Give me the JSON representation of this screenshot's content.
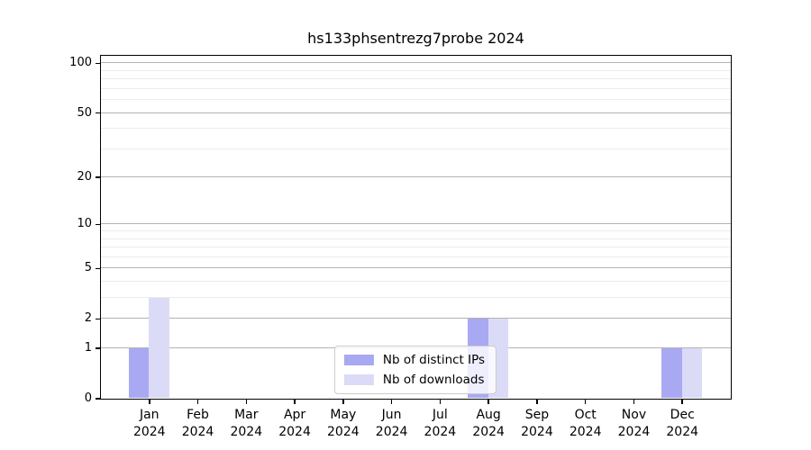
{
  "chart_data": {
    "type": "bar",
    "title": "hs133phsentrezg7probe 2024",
    "categories": [
      "Jan",
      "Feb",
      "Mar",
      "Apr",
      "May",
      "Jun",
      "Jul",
      "Aug",
      "Sep",
      "Oct",
      "Nov",
      "Dec"
    ],
    "category_year": "2024",
    "series": [
      {
        "name": "Nb of distinct IPs",
        "color": "#a9a9f3",
        "values": [
          1,
          0,
          0,
          0,
          0,
          0,
          0,
          2,
          0,
          0,
          0,
          1
        ]
      },
      {
        "name": "Nb of downloads",
        "color": "#dbdbf8",
        "values": [
          3,
          0,
          0,
          0,
          0,
          0,
          0,
          2,
          0,
          0,
          0,
          1
        ]
      }
    ],
    "yaxis": {
      "scale": "log1p",
      "min": 0,
      "max": 111,
      "ticks": [
        100,
        50,
        20,
        10,
        5,
        2,
        1,
        0
      ],
      "minor_gridlines": [
        3,
        4,
        6,
        7,
        8,
        9,
        30,
        40,
        60,
        70,
        80,
        90
      ]
    },
    "xlabel": "",
    "ylabel": "",
    "grid": {
      "major_color": "#b3b3b3",
      "minor_color": "#ececec"
    },
    "legend": {
      "position": "lower center"
    },
    "background": "#ffffff"
  }
}
